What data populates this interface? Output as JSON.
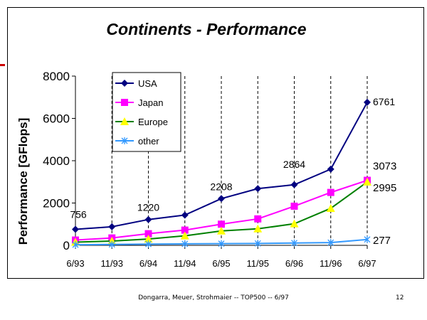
{
  "page": {
    "footer": "Dongarra, Meuer, Strohmaier -- TOP500 -- 6/97",
    "page_number": "12"
  },
  "chart_data": {
    "type": "line",
    "title": "Continents - Performance",
    "xlabel": "",
    "ylabel": "Performance [GFlops]",
    "categories": [
      "6/93",
      "11/93",
      "6/94",
      "11/94",
      "6/95",
      "11/95",
      "6/96",
      "11/96",
      "6/97"
    ],
    "ylim": [
      0,
      8000
    ],
    "yticks": [
      0,
      2000,
      4000,
      6000,
      8000
    ],
    "grid": "vertical dashed",
    "legend_position": "top-left",
    "series": [
      {
        "name": "USA",
        "color": "#000080",
        "marker": "diamond",
        "values": [
          756,
          880,
          1220,
          1430,
          2208,
          2680,
          2864,
          3600,
          6761
        ]
      },
      {
        "name": "Japan",
        "color": "#ff00ff",
        "marker": "square",
        "values": [
          250,
          350,
          550,
          720,
          1000,
          1250,
          1850,
          2500,
          3073
        ]
      },
      {
        "name": "Europe",
        "color": "#008000",
        "marker": "triangle",
        "values": [
          150,
          200,
          300,
          450,
          680,
          780,
          1020,
          1750,
          2995
        ]
      },
      {
        "name": "other",
        "color": "#3399ff",
        "marker": "star",
        "values": [
          30,
          40,
          60,
          70,
          80,
          90,
          110,
          130,
          277
        ]
      }
    ],
    "data_labels": [
      {
        "series": "USA",
        "index": 0,
        "text": "756"
      },
      {
        "series": "USA",
        "index": 2,
        "text": "1220"
      },
      {
        "series": "USA",
        "index": 4,
        "text": "2208"
      },
      {
        "series": "USA",
        "index": 6,
        "text": "2864"
      },
      {
        "series": "USA",
        "index": 8,
        "text": "6761"
      },
      {
        "series": "Japan",
        "index": 8,
        "text": "3073"
      },
      {
        "series": "Europe",
        "index": 8,
        "text": "2995"
      },
      {
        "series": "other",
        "index": 8,
        "text": "277"
      }
    ]
  }
}
